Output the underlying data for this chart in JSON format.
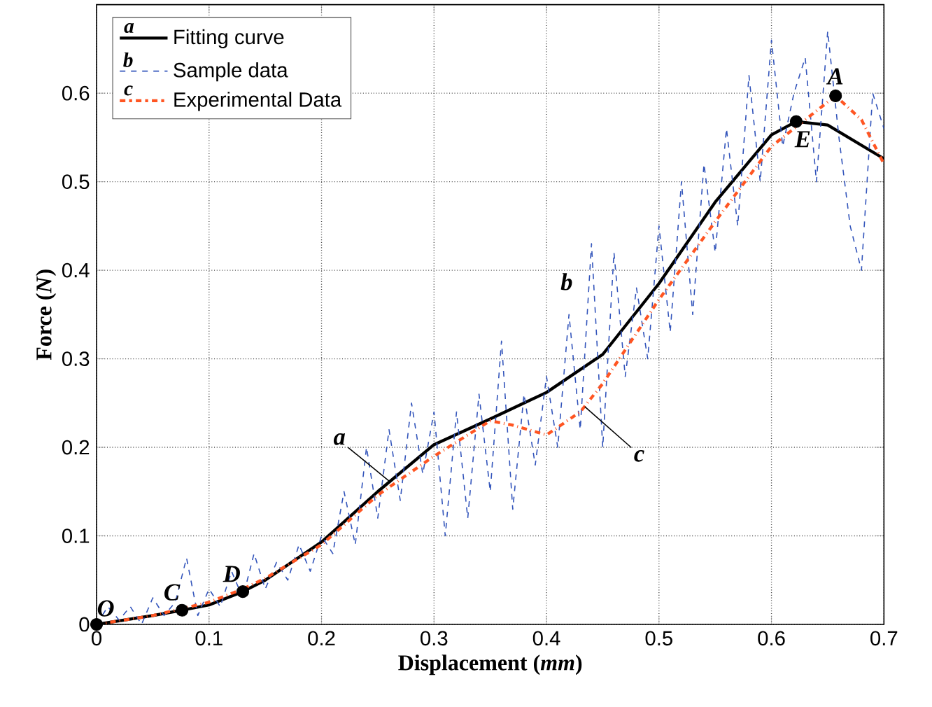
{
  "chart_data": {
    "type": "line",
    "xlabel": "Displacement (*mm*)",
    "ylabel": "Force (*N*)",
    "xlim": [
      0,
      0.7
    ],
    "ylim": [
      0,
      0.7
    ],
    "xticks": [
      0,
      0.1,
      0.2,
      0.3,
      0.4,
      0.5,
      0.6,
      0.7
    ],
    "yticks": [
      0,
      0.1,
      0.2,
      0.3,
      0.4,
      0.5,
      0.6
    ],
    "grid": true,
    "legend": "top left",
    "series": [
      {
        "name": "Fitting curve",
        "color": "#000000",
        "line_style": "solid",
        "x": [
          0,
          0.05,
          0.076,
          0.1,
          0.13,
          0.15,
          0.2,
          0.25,
          0.3,
          0.35,
          0.4,
          0.45,
          0.5,
          0.55,
          0.6,
          0.622,
          0.65,
          0.7
        ],
        "values": [
          0,
          0.01,
          0.016,
          0.022,
          0.037,
          0.05,
          0.093,
          0.15,
          0.203,
          0.232,
          0.262,
          0.305,
          0.385,
          0.477,
          0.553,
          0.568,
          0.564,
          0.526
        ]
      },
      {
        "name": "Sample data",
        "color": "#3355bb",
        "line_style": "dashed",
        "x": [
          0,
          0.01,
          0.02,
          0.03,
          0.04,
          0.05,
          0.06,
          0.07,
          0.08,
          0.09,
          0.1,
          0.11,
          0.12,
          0.13,
          0.14,
          0.15,
          0.16,
          0.17,
          0.18,
          0.19,
          0.2,
          0.21,
          0.22,
          0.23,
          0.24,
          0.25,
          0.26,
          0.27,
          0.28,
          0.29,
          0.3,
          0.31,
          0.32,
          0.33,
          0.34,
          0.35,
          0.36,
          0.37,
          0.38,
          0.39,
          0.4,
          0.41,
          0.42,
          0.43,
          0.44,
          0.45,
          0.46,
          0.47,
          0.48,
          0.49,
          0.5,
          0.51,
          0.52,
          0.53,
          0.54,
          0.55,
          0.56,
          0.57,
          0.58,
          0.59,
          0.6,
          0.61,
          0.62,
          0.63,
          0.64,
          0.65,
          0.66,
          0.67,
          0.68,
          0.69,
          0.7
        ],
        "values": [
          0,
          0.02,
          0.005,
          0.02,
          0.0,
          0.03,
          0.01,
          0.025,
          0.075,
          0.01,
          0.04,
          0.02,
          0.06,
          0.03,
          0.08,
          0.04,
          0.07,
          0.05,
          0.09,
          0.06,
          0.1,
          0.08,
          0.15,
          0.09,
          0.2,
          0.12,
          0.22,
          0.14,
          0.25,
          0.17,
          0.24,
          0.1,
          0.24,
          0.12,
          0.26,
          0.15,
          0.32,
          0.13,
          0.26,
          0.18,
          0.28,
          0.2,
          0.35,
          0.22,
          0.43,
          0.2,
          0.42,
          0.28,
          0.38,
          0.3,
          0.45,
          0.33,
          0.5,
          0.35,
          0.52,
          0.42,
          0.56,
          0.45,
          0.62,
          0.5,
          0.66,
          0.54,
          0.6,
          0.64,
          0.5,
          0.67,
          0.55,
          0.45,
          0.4,
          0.6,
          0.56
        ]
      },
      {
        "name": "Experimental Data",
        "color": "#ff5522",
        "line_style": "dashdot",
        "x": [
          0,
          0.05,
          0.1,
          0.13,
          0.15,
          0.2,
          0.25,
          0.3,
          0.35,
          0.37,
          0.4,
          0.43,
          0.45,
          0.5,
          0.55,
          0.6,
          0.625,
          0.657,
          0.68,
          0.7
        ],
        "values": [
          0,
          0.01,
          0.025,
          0.04,
          0.052,
          0.09,
          0.146,
          0.19,
          0.23,
          0.225,
          0.214,
          0.24,
          0.272,
          0.367,
          0.455,
          0.54,
          0.565,
          0.597,
          0.57,
          0.52
        ]
      },
      {
        "type": "scatter",
        "color": "#000000",
        "marker": "circle",
        "x": [
          0,
          0.076,
          0.13,
          0.622,
          0.657
        ],
        "values": [
          0,
          0.016,
          0.037,
          0.568,
          0.597
        ]
      }
    ],
    "annotations": [
      "a",
      "b",
      "c",
      {
        "text": "O",
        "x": 0,
        "y": 0
      },
      {
        "text": "C",
        "x": 0.076,
        "y": 0.016
      },
      {
        "text": "D",
        "x": 0.13,
        "y": 0.037
      },
      {
        "text": "E",
        "x": 0.622,
        "y": 0.568
      },
      {
        "text": "A",
        "x": 0.657,
        "y": 0.597
      },
      {
        "text": "a",
        "x": 0.26,
        "y": 0.162
      },
      "b",
      {
        "text": "c",
        "x": 0.434,
        "y": 0.246
      }
    ]
  }
}
